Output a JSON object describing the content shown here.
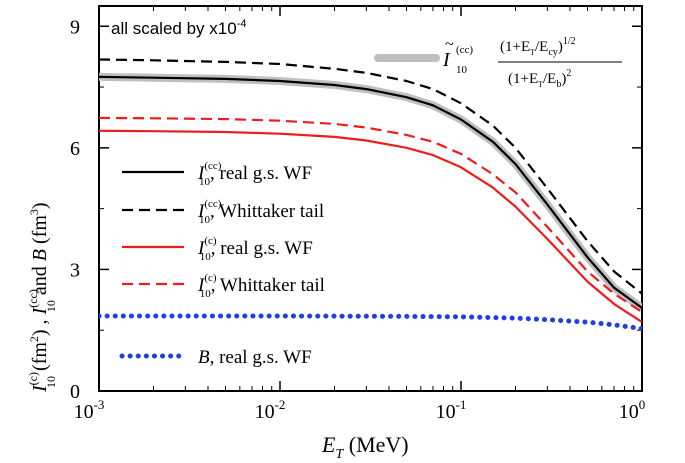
{
  "chart_data": {
    "type": "line",
    "xscale": "log",
    "xlim": [
      0.001,
      1
    ],
    "ylim": [
      0,
      9.5
    ],
    "x_ticks": [
      0.001,
      0.01,
      0.1,
      1
    ],
    "x_tick_labels": [
      {
        "base": "10",
        "exp": "-3"
      },
      {
        "base": "10",
        "exp": "-2"
      },
      {
        "base": "10",
        "exp": "-1"
      },
      {
        "base": "10",
        "exp": "0"
      }
    ],
    "y_ticks": [
      0,
      3,
      6,
      9
    ],
    "y_tick_labels": [
      "0",
      "3",
      "6",
      "9"
    ],
    "xlabel": {
      "main": "E",
      "sub": "T",
      "unit": " (MeV)"
    },
    "ylabel": {
      "I1": "I",
      "sub1": "10",
      "sup1": "(c)",
      "unit1": " (fm",
      "pow1": "2",
      "close1": ") , ",
      "I2": "I",
      "sub2": "10",
      "sup2": "(cc)",
      "and": " and ",
      "B": "B",
      "unit2": " (fm",
      "pow2": "3",
      "close2": ")"
    },
    "annotation": {
      "text": "all scaled by x10",
      "exp": "-4"
    },
    "formula": {
      "symbol": "I",
      "sub": "10",
      "sup": "(cc)",
      "numerator": "(1+E",
      "num_sub": "T",
      "num_div": "/E",
      "num_sub2": "cy",
      "num_close": ")",
      "num_pow": "1/2",
      "denominator": "(1+E",
      "den_sub": "T",
      "den_div": "/E",
      "den_sub2": "b",
      "den_close": ")",
      "den_pow": "2",
      "color": "#bfbfbf"
    },
    "grid": false,
    "legend_position": "left",
    "series": [
      {
        "symbol": "I",
        "sub": "10",
        "sup": "(cc)",
        "name": ", real g.s. WF",
        "color": "#000000",
        "style": "solid",
        "underlay": true,
        "x": [
          0.001,
          0.002,
          0.005,
          0.01,
          0.02,
          0.03,
          0.05,
          0.07,
          0.1,
          0.15,
          0.2,
          0.3,
          0.5,
          0.7,
          1.0
        ],
        "y": [
          7.75,
          7.73,
          7.7,
          7.65,
          7.55,
          7.45,
          7.25,
          7.05,
          6.7,
          6.15,
          5.6,
          4.6,
          3.3,
          2.55,
          2.05
        ]
      },
      {
        "symbol": "I",
        "sub": "10",
        "sup": "(cc)",
        "name": ", Whittaker tail",
        "color": "#000000",
        "style": "dashed",
        "x": [
          0.001,
          0.002,
          0.005,
          0.01,
          0.02,
          0.03,
          0.05,
          0.07,
          0.1,
          0.15,
          0.2,
          0.3,
          0.5,
          0.7,
          1.0
        ],
        "y": [
          8.18,
          8.16,
          8.12,
          8.07,
          7.95,
          7.85,
          7.65,
          7.45,
          7.1,
          6.55,
          6.0,
          5.0,
          3.7,
          2.95,
          2.4
        ]
      },
      {
        "symbol": "I",
        "sub": "10",
        "sup": "(c)",
        "name": ", real g.s. WF",
        "color": "#ee1c1c",
        "style": "solid",
        "x": [
          0.001,
          0.002,
          0.005,
          0.01,
          0.02,
          0.03,
          0.05,
          0.07,
          0.1,
          0.15,
          0.2,
          0.3,
          0.5,
          0.7,
          1.0
        ],
        "y": [
          6.42,
          6.41,
          6.39,
          6.35,
          6.27,
          6.18,
          6.0,
          5.82,
          5.52,
          5.02,
          4.55,
          3.75,
          2.7,
          2.15,
          1.7
        ]
      },
      {
        "symbol": "I",
        "sub": "10",
        "sup": "(c)",
        "name": ", Whittaker tail",
        "color": "#ee1c1c",
        "style": "dashed",
        "x": [
          0.001,
          0.002,
          0.005,
          0.01,
          0.02,
          0.03,
          0.05,
          0.07,
          0.1,
          0.15,
          0.2,
          0.3,
          0.5,
          0.7,
          1.0
        ],
        "y": [
          6.74,
          6.73,
          6.71,
          6.67,
          6.59,
          6.5,
          6.32,
          6.15,
          5.85,
          5.35,
          4.9,
          4.05,
          2.95,
          2.4,
          1.95
        ]
      },
      {
        "symbol": "B",
        "sub": "",
        "sup": "",
        "name": ",   real g.s. WF",
        "color": "#1f3fe6",
        "style": "dotted",
        "x": [
          0.001,
          0.01,
          0.05,
          0.1,
          0.2,
          0.3,
          0.5,
          0.7,
          1.0
        ],
        "y": [
          1.85,
          1.85,
          1.84,
          1.83,
          1.8,
          1.76,
          1.7,
          1.63,
          1.54
        ]
      }
    ]
  }
}
